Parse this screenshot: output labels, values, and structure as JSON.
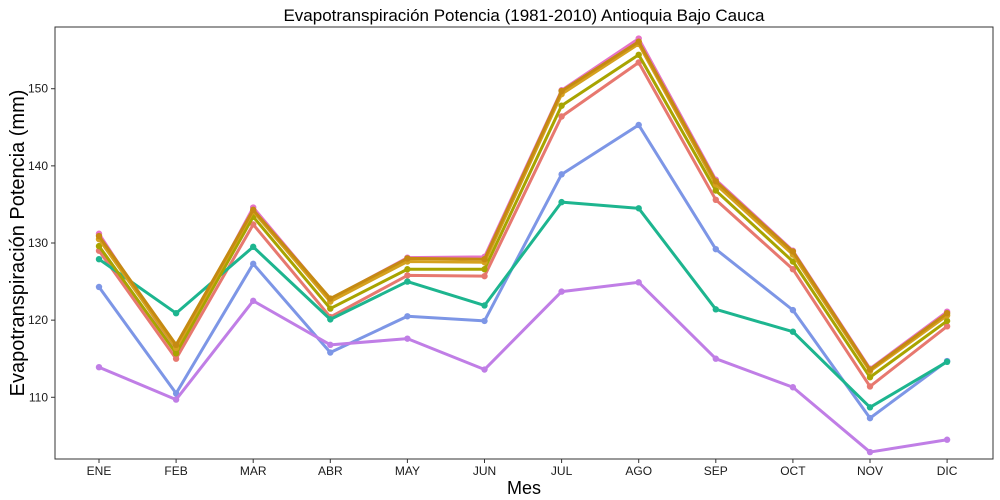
{
  "chart_data": {
    "type": "line",
    "title": "Evapotranspiración Potencia (1981-2010)  Antioquia Bajo Cauca",
    "xlabel": "Mes",
    "ylabel": "Evapotranspiración Potencia  (mm)",
    "categories": [
      "ENE",
      "FEB",
      "MAR",
      "ABR",
      "MAY",
      "JUN",
      "JUL",
      "AGO",
      "SEP",
      "OCT",
      "NOV",
      "DIC"
    ],
    "ylim": [
      102,
      158
    ],
    "yticks": [
      110,
      120,
      130,
      140,
      150
    ],
    "grid": false,
    "series": [
      {
        "color": "#E7786F",
        "values": [
          129.0,
          115.0,
          132.4,
          120.4,
          125.8,
          125.7,
          146.4,
          153.4,
          135.6,
          126.6,
          111.4,
          119.2
        ]
      },
      {
        "color": "#E572C8",
        "values": [
          131.2,
          116.0,
          134.6,
          122.7,
          128.1,
          128.2,
          149.8,
          156.5,
          138.2,
          129.0,
          113.7,
          121.1
        ]
      },
      {
        "color": "#7D96E6",
        "values": [
          124.3,
          110.5,
          127.3,
          115.8,
          120.5,
          119.9,
          138.9,
          145.3,
          129.2,
          121.3,
          107.3,
          114.7
        ]
      },
      {
        "color": "#1DB58F",
        "values": [
          127.9,
          120.9,
          129.5,
          120.1,
          125.0,
          121.9,
          135.3,
          134.5,
          121.4,
          118.5,
          108.7,
          114.6
        ]
      },
      {
        "color": "#C07EE6",
        "values": [
          113.9,
          109.7,
          122.5,
          116.8,
          117.6,
          113.6,
          123.7,
          124.9,
          115.0,
          111.3,
          102.9,
          104.5
        ]
      },
      {
        "color": "#A8A400",
        "values": [
          129.6,
          115.7,
          133.4,
          121.5,
          126.6,
          126.6,
          147.8,
          154.4,
          136.8,
          127.6,
          112.6,
          119.9
        ]
      },
      {
        "color": "#D5A11E",
        "values": [
          130.5,
          116.4,
          134.1,
          122.4,
          127.6,
          127.5,
          149.3,
          155.8,
          137.6,
          128.5,
          113.4,
          120.6
        ]
      },
      {
        "color": "#C58A12",
        "values": [
          130.9,
          116.8,
          134.3,
          122.8,
          128.0,
          127.9,
          149.7,
          156.1,
          138.0,
          128.9,
          113.6,
          120.9
        ]
      }
    ]
  }
}
